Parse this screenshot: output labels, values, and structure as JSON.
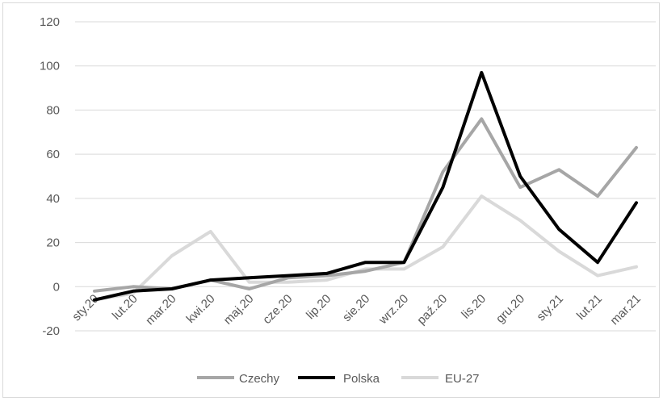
{
  "chart_data": {
    "type": "line",
    "title": "",
    "xlabel": "",
    "ylabel": "",
    "ylim": [
      -20,
      120
    ],
    "yticks": [
      "120",
      "100",
      "80",
      "60",
      "40",
      "20",
      "0",
      "-20"
    ],
    "grid": "horizontal",
    "legend": "bottom",
    "categories": [
      "sty.20",
      "lut.20",
      "mar.20",
      "kwi.20",
      "maj.20",
      "cze.20",
      "lip.20",
      "sie.20",
      "wrz.20",
      "paź.20",
      "lis.20",
      "gru.20",
      "sty.21",
      "lut.21",
      "mar.21"
    ],
    "series": [
      {
        "name": "Czechy",
        "color": "#a6a6a6",
        "values": [
          -2,
          0,
          -1,
          3,
          -1,
          4,
          5,
          7,
          11,
          52,
          76,
          45,
          53,
          41,
          63
        ]
      },
      {
        "name": "Polska",
        "color": "#000000",
        "values": [
          -6,
          -2,
          -1,
          3,
          4,
          5,
          6,
          11,
          11,
          45,
          97,
          50,
          26,
          11,
          38
        ]
      },
      {
        "name": "EU-27",
        "color": "#d9d9d9",
        "values": [
          -6,
          -3,
          14,
          25,
          2,
          2,
          3,
          8,
          8,
          18,
          41,
          30,
          16,
          5,
          9
        ]
      }
    ]
  }
}
